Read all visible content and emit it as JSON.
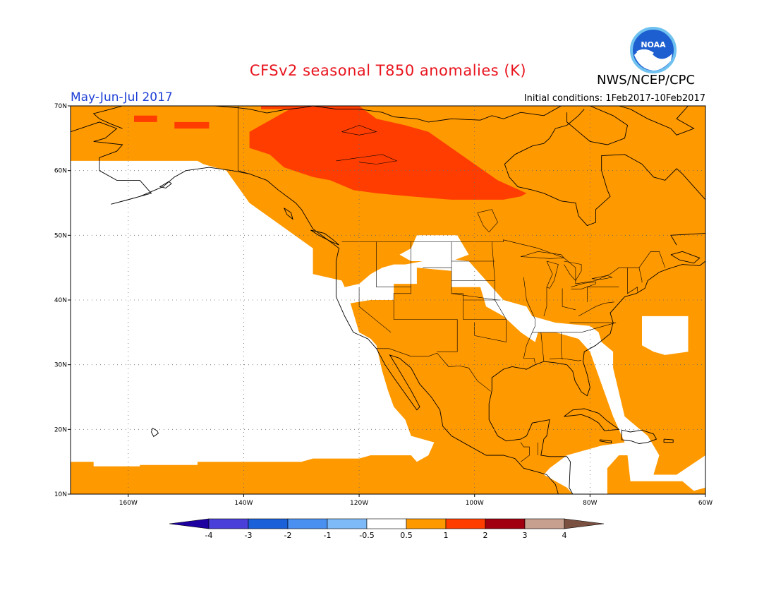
{
  "title": "CFSv2 seasonal T850 anomalies (K)",
  "agency": "NWS/NCEP/CPC",
  "logo_text": "NOAA",
  "season": "May-Jun-Jul 2017",
  "initial_conditions": "Initial conditions: 1Feb2017-10Feb2017",
  "map": {
    "projection": "cylindrical",
    "lon_range": [
      -170,
      -60
    ],
    "lat_range": [
      10,
      70
    ],
    "lat_ticks": [
      {
        "lat": 70,
        "label": "70N"
      },
      {
        "lat": 60,
        "label": "60N"
      },
      {
        "lat": 50,
        "label": "50N"
      },
      {
        "lat": 40,
        "label": "40N"
      },
      {
        "lat": 30,
        "label": "30N"
      },
      {
        "lat": 20,
        "label": "20N"
      },
      {
        "lat": 10,
        "label": "10N"
      }
    ],
    "lon_ticks": [
      {
        "lon": -160,
        "label": "160W"
      },
      {
        "lon": -140,
        "label": "140W"
      },
      {
        "lon": -120,
        "label": "120W"
      },
      {
        "lon": -100,
        "label": "100W"
      },
      {
        "lon": -80,
        "label": "80W"
      },
      {
        "lon": -60,
        "label": "60W"
      }
    ],
    "anomaly_regions": [
      {
        "level": "0.5-1",
        "color": "#ff9900",
        "points": [
          [
            -170,
            70
          ],
          [
            -60,
            70
          ],
          [
            -60,
            10
          ],
          [
            -170,
            10
          ],
          [
            -170,
            15
          ],
          [
            -166,
            15
          ],
          [
            -166,
            14.3
          ],
          [
            -158,
            14.3
          ],
          [
            -158,
            14.5
          ],
          [
            -148,
            14.5
          ],
          [
            -148,
            15
          ],
          [
            -130,
            15
          ],
          [
            -128,
            15.5
          ],
          [
            -120,
            15.5
          ],
          [
            -118,
            16
          ],
          [
            -111,
            16
          ],
          [
            -110,
            15
          ],
          [
            -108,
            16
          ],
          [
            -107,
            18
          ],
          [
            -111,
            19
          ],
          [
            -112,
            21.5
          ],
          [
            -114,
            23.5
          ],
          [
            -115,
            26
          ],
          [
            -116,
            29
          ],
          [
            -117,
            33
          ],
          [
            -118,
            34
          ],
          [
            -120,
            35
          ],
          [
            -121,
            38
          ],
          [
            -121.5,
            39.5
          ],
          [
            -118,
            40
          ],
          [
            -114,
            40
          ],
          [
            -114,
            42.5
          ],
          [
            -110,
            42.5
          ],
          [
            -110,
            45
          ],
          [
            -104,
            44.5
          ],
          [
            -104,
            42
          ],
          [
            -99,
            42
          ],
          [
            -98,
            39
          ],
          [
            -95,
            37.5
          ],
          [
            -92,
            35
          ],
          [
            -89.5,
            33.5
          ],
          [
            -89,
            35
          ],
          [
            -86,
            35
          ],
          [
            -82,
            34
          ],
          [
            -80,
            32
          ],
          [
            -78,
            27
          ],
          [
            -76,
            22
          ],
          [
            -74,
            18
          ],
          [
            -78,
            17.5
          ],
          [
            -84,
            16
          ],
          [
            -87,
            14
          ],
          [
            -88,
            13
          ],
          [
            -84,
            11
          ],
          [
            -83,
            10
          ],
          [
            -77,
            10
          ],
          [
            -77,
            14
          ],
          [
            -75,
            16
          ],
          [
            -73.5,
            16
          ],
          [
            -73,
            12
          ],
          [
            -67,
            12
          ],
          [
            -64,
            12
          ],
          [
            -62,
            10.5
          ],
          [
            -60,
            11
          ],
          [
            -60,
            16
          ],
          [
            -65,
            13
          ],
          [
            -69,
            13
          ],
          [
            -68,
            16
          ],
          [
            -70,
            19
          ],
          [
            -74,
            22
          ],
          [
            -76,
            29.5
          ],
          [
            -76,
            32
          ],
          [
            -78,
            33.5
          ],
          [
            -78.5,
            35
          ],
          [
            -80,
            36
          ],
          [
            -86,
            36.5
          ],
          [
            -90,
            37.5
          ],
          [
            -91,
            39
          ],
          [
            -95,
            40
          ],
          [
            -98,
            43
          ],
          [
            -101,
            46
          ],
          [
            -106,
            46.5
          ],
          [
            -109,
            46
          ],
          [
            -112,
            45.5
          ],
          [
            -114,
            45.5
          ],
          [
            -116,
            45
          ],
          [
            -118,
            44
          ],
          [
            -120,
            42.5
          ],
          [
            -122.5,
            42
          ],
          [
            -123,
            43
          ],
          [
            -128,
            44
          ],
          [
            -128,
            48
          ],
          [
            -139,
            55
          ],
          [
            -143,
            60
          ],
          [
            -147,
            61
          ],
          [
            -148,
            61.5
          ],
          [
            -170,
            61.5
          ]
        ]
      },
      {
        "level": "1-2",
        "color": "#ff3d00",
        "points": [
          [
            -131,
            70
          ],
          [
            -120,
            70
          ],
          [
            -117,
            68
          ],
          [
            -112,
            67
          ],
          [
            -108,
            66
          ],
          [
            -104,
            63.5
          ],
          [
            -100,
            61
          ],
          [
            -96,
            58.5
          ],
          [
            -91,
            56.5
          ],
          [
            -92,
            56
          ],
          [
            -95,
            55.5
          ],
          [
            -104,
            55.5
          ],
          [
            -111,
            56
          ],
          [
            -117,
            56.5
          ],
          [
            -121,
            57
          ],
          [
            -125,
            58.5
          ],
          [
            -128,
            59
          ],
          [
            -133,
            60.5
          ],
          [
            -135.5,
            62.5
          ],
          [
            -139,
            63.5
          ],
          [
            -139,
            66
          ],
          [
            -136,
            67.5
          ],
          [
            -134,
            68.5
          ]
        ]
      },
      {
        "level": "1-2",
        "color": "#ff3d00",
        "points": [
          [
            -137,
            70
          ],
          [
            -121,
            70
          ],
          [
            -121,
            69.5
          ],
          [
            -134,
            69.5
          ],
          [
            -137,
            69.5
          ]
        ]
      },
      {
        "level": "1-2",
        "color": "#ff3d00",
        "points": [
          [
            -159,
            68.5
          ],
          [
            -155,
            68.5
          ],
          [
            -155,
            67.5
          ],
          [
            -159,
            67.5
          ]
        ]
      },
      {
        "level": "1-2",
        "color": "#ff3d00",
        "points": [
          [
            -152,
            67.5
          ],
          [
            -146,
            67.5
          ],
          [
            -146,
            66.5
          ],
          [
            -150,
            66.5
          ],
          [
            -152,
            66.5
          ]
        ]
      }
    ],
    "white_holes": [
      {
        "points": [
          [
            -113,
            47
          ],
          [
            -111,
            48
          ],
          [
            -110,
            50
          ],
          [
            -103,
            50
          ],
          [
            -101,
            47
          ],
          [
            -104,
            46
          ],
          [
            -108,
            46
          ],
          [
            -111,
            46
          ]
        ]
      },
      {
        "points": [
          [
            -71,
            33
          ],
          [
            -71,
            37.5
          ],
          [
            -63,
            37.5
          ],
          [
            -63,
            32
          ],
          [
            -67,
            31.5
          ],
          [
            -69,
            32
          ]
        ]
      }
    ]
  },
  "colorbar": {
    "colors": [
      "#1e00a0",
      "#4a3fd8",
      "#1a60d8",
      "#4a90f0",
      "#7fbaf8",
      "#ffffff",
      "#ff9900",
      "#ff3d00",
      "#a00010",
      "#c8a090",
      "#7a5040"
    ],
    "labels": [
      "-4",
      "-3",
      "-2",
      "-1",
      "-0.5",
      "0.5",
      "1",
      "2",
      "3",
      "4"
    ]
  }
}
